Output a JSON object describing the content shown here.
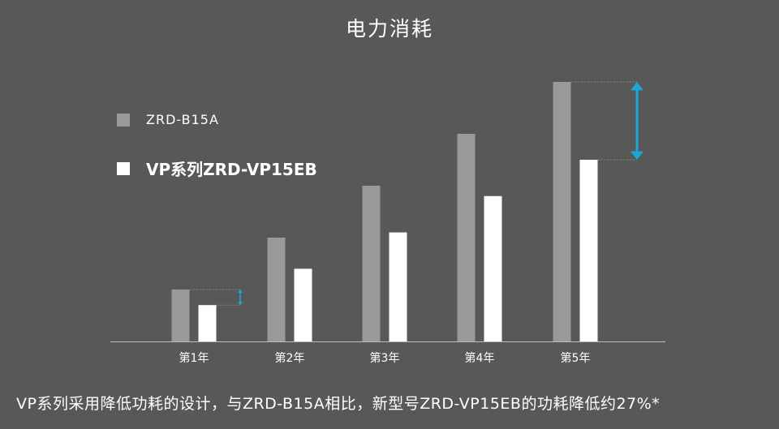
{
  "chart_data": {
    "type": "bar",
    "title": "电力消耗",
    "categories": [
      "第1年",
      "第2年",
      "第3年",
      "第4年",
      "第5年"
    ],
    "series": [
      {
        "name": "ZRD-B15A",
        "color": "#999999",
        "values": [
          20,
          40,
          60,
          80,
          100
        ]
      },
      {
        "name": "VP系列ZRD-VP15EB",
        "color": "#ffffff",
        "values": [
          14,
          28,
          42,
          56,
          70
        ]
      }
    ],
    "highlight_color": "#1aa7d6",
    "legend_position": "left",
    "grid": false
  },
  "footnote": "VP系列采用降低功耗的设计，与ZRD-B15A相比，新型号ZRD-VP15EB的功耗降低约27%*"
}
